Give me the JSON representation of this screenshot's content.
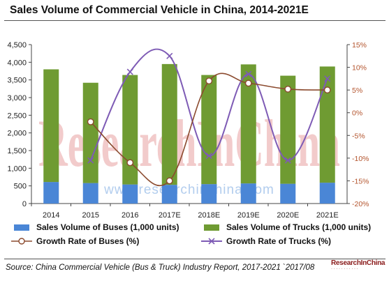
{
  "title": "Sales Volume of Commercial Vehicle in China, 2014-2021E",
  "watermark": {
    "big": "ResearchInChina",
    "url": "www.researchinchina.com"
  },
  "source": "Source: China Commercial Vehicle (Bus & Truck) Industry Report, 2017-2021  `2017/08",
  "logo_text": "ResearchInChina",
  "colors": {
    "buses_bar": "#4a86d6",
    "trucks_bar": "#6f9b32",
    "buses_line": "#8b4a2e",
    "trucks_line": "#7e5bb5",
    "watermark_red": "#e8a0a0",
    "watermark_blue": "#9fc0ea"
  },
  "chart_data": {
    "type": "bar",
    "stacked": true,
    "categories": [
      "2014",
      "2015",
      "2016",
      "2017E",
      "2018E",
      "2019E",
      "2020E",
      "2021E"
    ],
    "series": [
      {
        "name": "Sales Volume of Buses (1,000 units)",
        "axis": "left",
        "type": "bar",
        "values": [
          610,
          580,
          540,
          530,
          550,
          570,
          560,
          590
        ]
      },
      {
        "name": "Sales Volume of Trucks (1,000 units)",
        "axis": "left",
        "type": "bar",
        "values": [
          3190,
          2840,
          3100,
          3420,
          3090,
          3370,
          3060,
          3290
        ]
      },
      {
        "name": "Growth Rate of Buses (%)",
        "axis": "right",
        "type": "line",
        "values": [
          null,
          -2,
          -11,
          -15,
          7,
          6.5,
          5.2,
          5
        ]
      },
      {
        "name": "Growth Rate of Trucks (%)",
        "axis": "right",
        "type": "line",
        "values": [
          null,
          -10.5,
          9,
          12.5,
          -9.5,
          8.5,
          -10.5,
          7.5
        ]
      }
    ],
    "y_left": {
      "min": 0,
      "max": 4500,
      "step": 500,
      "ticks": [
        "0",
        "500",
        "1,000",
        "1,500",
        "2,000",
        "2,500",
        "3,000",
        "3,500",
        "4,000",
        "4,500"
      ]
    },
    "y_right": {
      "min": -20,
      "max": 15,
      "step": 5,
      "ticks": [
        "15%",
        "10%",
        "5%",
        "0%",
        "-5%",
        "-10%",
        "-15%",
        "-20%"
      ]
    },
    "legend": [
      "Sales Volume of Buses (1,000 units)",
      "Sales Volume of Trucks (1,000 units)",
      "Growth Rate of Buses (%)",
      "Growth Rate of Trucks (%)"
    ],
    "legend_position": "bottom",
    "grid": false
  }
}
